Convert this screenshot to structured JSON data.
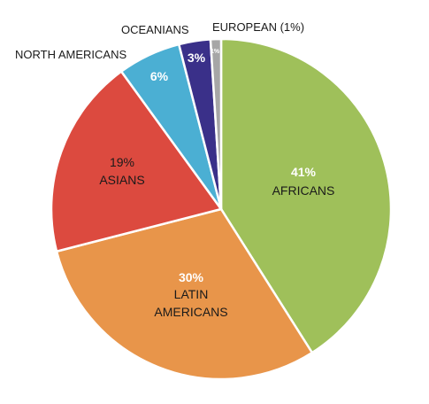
{
  "chart_data": {
    "type": "pie",
    "title": "",
    "slices": [
      {
        "label": "AFRICANS",
        "value": 41,
        "value_label": "41%",
        "color": "#9fc05a"
      },
      {
        "label": "LATIN AMERICANS",
        "value": 30,
        "value_label": "30%",
        "color": "#e8954a"
      },
      {
        "label": "ASIANS",
        "value": 19,
        "value_label": "19%",
        "color": "#dc4a3f"
      },
      {
        "label": "NORTH AMERICANS",
        "value": 6,
        "value_label": "6%",
        "color": "#4bafd3"
      },
      {
        "label": "OCEANIANS",
        "value": 3,
        "value_label": "3%",
        "color": "#3a3089"
      },
      {
        "label": "EUROPEAN (1%)",
        "value": 1,
        "value_label": "1%",
        "color": "#a6a6a6"
      }
    ]
  }
}
